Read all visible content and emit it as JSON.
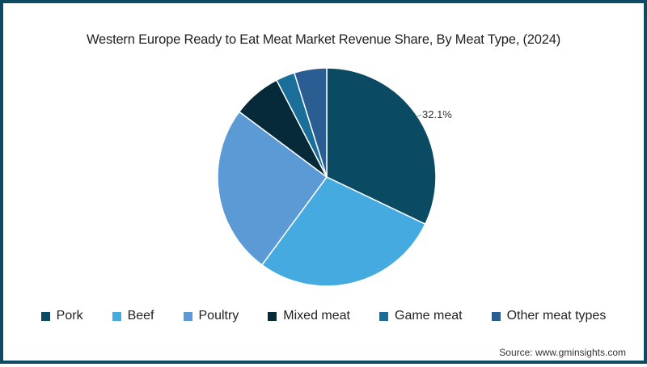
{
  "chart": {
    "title": "Western Europe Ready to Eat Meat Market Revenue Share, By Meat Type, (2024)",
    "source": "Source: www.gminsights.com",
    "data_label": "32.1%"
  },
  "legend": [
    {
      "label": "Pork",
      "color": "#0b4a63"
    },
    {
      "label": "Beef",
      "color": "#45aae0"
    },
    {
      "label": "Poultry",
      "color": "#5b9ad4"
    },
    {
      "label": "Mixed meat",
      "color": "#062a3a"
    },
    {
      "label": "Game meat",
      "color": "#1a6e9a"
    },
    {
      "label": "Other meat types",
      "color": "#2a5d92"
    }
  ],
  "chart_data": {
    "type": "pie",
    "title": "Western Europe Ready to Eat Meat Market Revenue Share, By Meat Type, (2024)",
    "categories": [
      "Pork",
      "Beef",
      "Poultry",
      "Mixed meat",
      "Game meat",
      "Other meat types"
    ],
    "values": [
      32.1,
      28.0,
      25.1,
      7.2,
      2.8,
      4.8
    ],
    "unit": "%",
    "annotations": [
      "32.1% (Pork)"
    ],
    "legend_position": "bottom",
    "start_angle": "12 o'clock, clockwise",
    "source": "www.gminsights.com"
  }
}
